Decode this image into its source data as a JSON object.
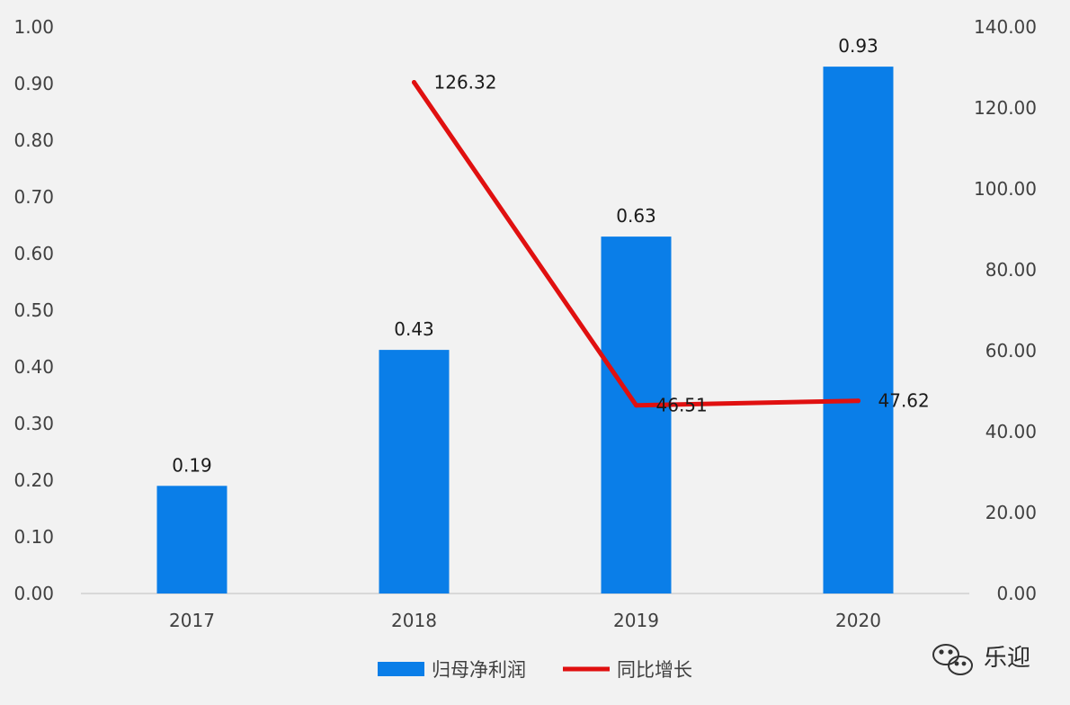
{
  "chart_data": {
    "type": "bar",
    "categories": [
      "2017",
      "2018",
      "2019",
      "2020"
    ],
    "series": [
      {
        "name": "归母净利润",
        "type": "bar",
        "axis": "left",
        "color": "#0a7ee8",
        "values": [
          0.19,
          0.43,
          0.63,
          0.93
        ],
        "labels": [
          "0.19",
          "0.43",
          "0.63",
          "0.93"
        ]
      },
      {
        "name": "同比增长",
        "type": "line",
        "axis": "right",
        "color": "#e01010",
        "values": [
          null,
          126.32,
          46.51,
          47.62
        ],
        "labels": [
          "",
          "126.32",
          "46.51",
          "47.62"
        ]
      }
    ],
    "ylim_left": [
      0,
      1.0
    ],
    "ylim_right": [
      0,
      140
    ],
    "yticks_left": [
      "0.00",
      "0.10",
      "0.20",
      "0.30",
      "0.40",
      "0.50",
      "0.60",
      "0.70",
      "0.80",
      "0.90",
      "1.00"
    ],
    "yticks_right": [
      "0.00",
      "20.00",
      "40.00",
      "60.00",
      "80.00",
      "100.00",
      "120.00",
      "140.00"
    ],
    "grid": false,
    "legend": "bottom-center"
  },
  "watermark": {
    "text": "乐迎",
    "icon": "wechat-icon"
  }
}
